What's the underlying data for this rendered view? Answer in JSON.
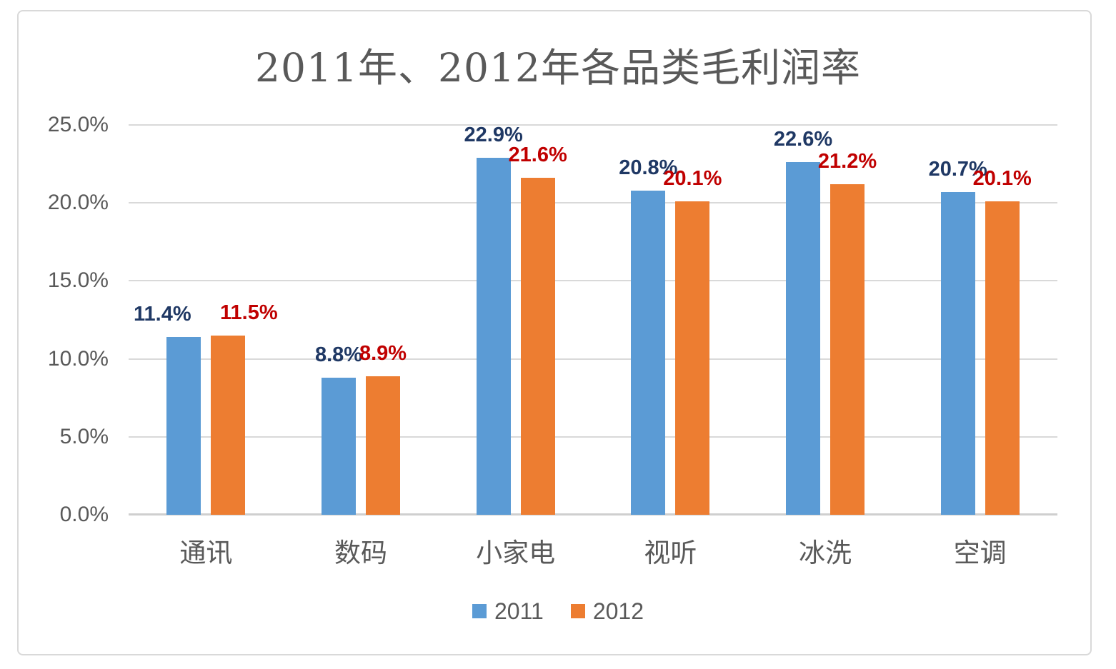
{
  "chart_data": {
    "type": "bar",
    "title": "2011年、2012年各品类毛利润率",
    "categories": [
      "通讯",
      "数码",
      "小家电",
      "视听",
      "冰洗",
      "空调"
    ],
    "series": [
      {
        "name": "2011",
        "color": "#5B9BD5",
        "label_color": "#1F3864",
        "values": [
          11.4,
          8.8,
          22.9,
          20.8,
          22.6,
          20.7
        ],
        "labels": [
          "11.4%",
          "8.8%",
          "22.9%",
          "20.8%",
          "22.6%",
          "20.7%"
        ],
        "label_dx": [
          -30,
          0,
          0,
          0,
          0,
          0
        ]
      },
      {
        "name": "2012",
        "color": "#ED7D31",
        "label_color": "#C00000",
        "values": [
          11.5,
          8.9,
          21.6,
          20.1,
          21.2,
          20.1
        ],
        "labels": [
          "11.5%",
          "8.9%",
          "21.6%",
          "20.1%",
          "21.2%",
          "20.1%"
        ],
        "label_dx": [
          29,
          0,
          0,
          0,
          0,
          0
        ]
      }
    ],
    "y_axis": {
      "tick_labels": [
        "0.0%",
        "5.0%",
        "10.0%",
        "15.0%",
        "20.0%",
        "25.0%"
      ],
      "min": 0,
      "max": 25,
      "unit": "%"
    },
    "legend": [
      "2011",
      "2012"
    ],
    "legend_position": "bottom",
    "grid": true
  },
  "colors": {
    "bar_2011": "#5B9BD5",
    "bar_2012": "#ED7D31",
    "label_2011": "#1F3864",
    "label_2012": "#C00000",
    "axis_text": "#595959",
    "title_text": "#595959",
    "gridline": "#D9D9D9",
    "frame_border": "#D9D9D9",
    "background": "#FFFFFF"
  }
}
